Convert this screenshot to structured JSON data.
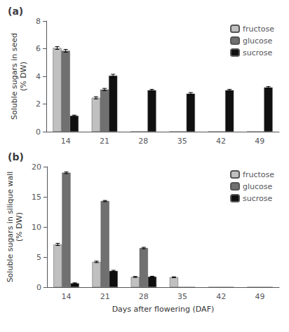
{
  "chart_data": [
    {
      "type": "bar",
      "title": "(a)",
      "ylabel": "Soluble sugars in seed\n(% DW)",
      "categories": [
        "14",
        "21",
        "28",
        "35",
        "42",
        "49"
      ],
      "series": [
        {
          "name": "fructose",
          "color": "#c0c0c0",
          "values": [
            6.05,
            2.45,
            0.0,
            0.0,
            0.0,
            0.0
          ],
          "errors": [
            0.1,
            0.08,
            0.0,
            0.0,
            0.0,
            0.0
          ]
        },
        {
          "name": "glucose",
          "color": "#707070",
          "values": [
            5.85,
            3.05,
            0.0,
            0.0,
            0.0,
            0.0
          ],
          "errors": [
            0.1,
            0.08,
            0.0,
            0.0,
            0.0,
            0.0
          ]
        },
        {
          "name": "sucrose",
          "color": "#101010",
          "values": [
            1.15,
            4.05,
            3.0,
            2.75,
            3.0,
            3.2
          ],
          "errors": [
            0.05,
            0.1,
            0.06,
            0.08,
            0.06,
            0.06
          ]
        }
      ],
      "ylim": [
        0,
        8
      ],
      "yticks": [
        0,
        2,
        4,
        6,
        8
      ],
      "grid": false,
      "legend": "upper right"
    },
    {
      "type": "bar",
      "title": "(b)",
      "ylabel": "Soluble sugars in silique wall\n(% DW)",
      "xlabel": "Days after flowering (DAF)",
      "categories": [
        "14",
        "21",
        "28",
        "35",
        "42",
        "49"
      ],
      "series": [
        {
          "name": "fructose",
          "color": "#c0c0c0",
          "values": [
            7.1,
            4.2,
            1.7,
            1.65,
            0.0,
            0.0
          ],
          "errors": [
            0.18,
            0.12,
            0.08,
            0.08,
            0.0,
            0.0
          ]
        },
        {
          "name": "glucose",
          "color": "#707070",
          "values": [
            19.0,
            14.3,
            6.5,
            0.0,
            0.0,
            0.0
          ],
          "errors": [
            0.15,
            0.1,
            0.12,
            0.0,
            0.0,
            0.0
          ]
        },
        {
          "name": "sucrose",
          "color": "#101010",
          "values": [
            0.65,
            2.7,
            1.75,
            0.0,
            0.0,
            0.0
          ],
          "errors": [
            0.07,
            0.1,
            0.07,
            0.0,
            0.0,
            0.0
          ]
        }
      ],
      "ylim": [
        0,
        20
      ],
      "yticks": [
        0,
        5,
        10,
        15,
        20
      ],
      "grid": false,
      "legend": "upper right"
    }
  ]
}
